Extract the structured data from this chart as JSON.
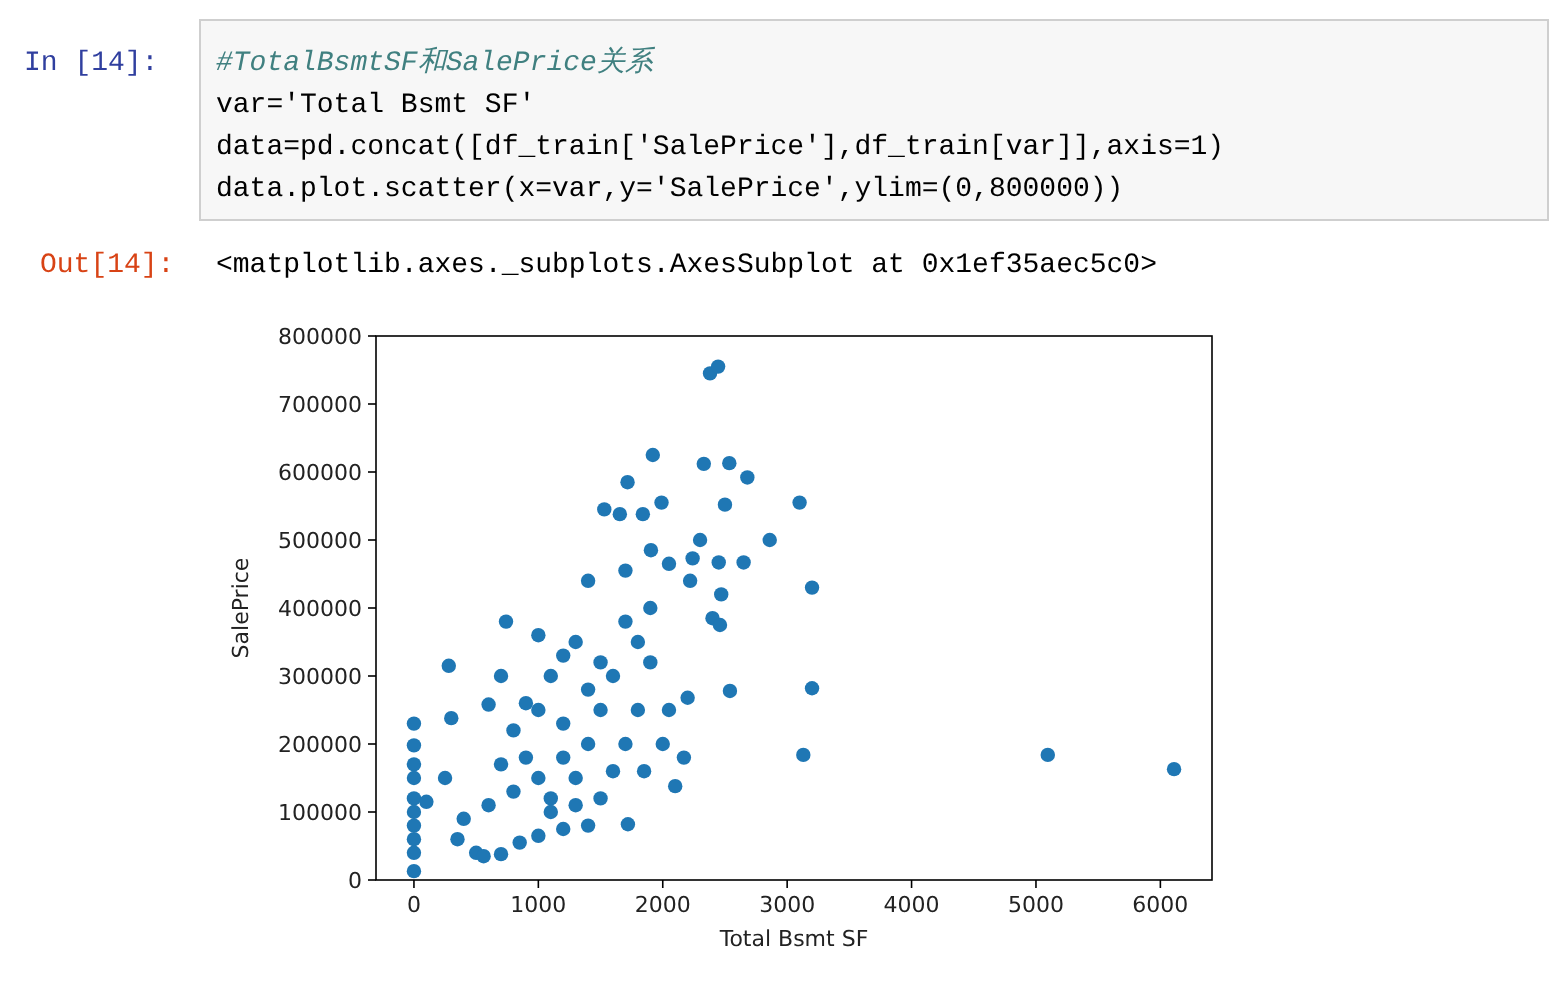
{
  "chart_data": {
    "type": "scatter",
    "xlabel": "Total Bsmt SF",
    "ylabel": "SalePrice",
    "annotations": [
      "In [14]:",
      "#TotalBsmtSF和SalePrice关系",
      "var='Total Bsmt SF'",
      "data=pd.concat([df_train['SalePrice'],df_train[var]],axis=1)",
      "data.plot.scatter(x=var,y='SalePrice',ylim=(0,800000))",
      "Out[14]:",
      "<matplotlib.axes._subplots.AxesSubplot at 0x1ef35aec5c0>"
    ],
    "xlim": [
      -305,
      6415
    ],
    "ylim": [
      0,
      800000
    ],
    "xticks": [
      0,
      1000,
      2000,
      3000,
      4000,
      5000,
      6000
    ],
    "yticks": [
      0,
      100000,
      200000,
      300000,
      400000,
      500000,
      600000,
      700000,
      800000
    ],
    "grid": false,
    "marker": "circle",
    "series": [
      {
        "color": "#1f77b4",
        "x": [
          2380,
          2445,
          1920,
          1717,
          2330,
          2535,
          2680,
          1530,
          1655,
          1840,
          1990,
          2500,
          3100,
          2300,
          2860,
          1905,
          2050,
          2240,
          2450,
          2650,
          3200,
          1400,
          1700,
          2220,
          2470,
          2400,
          2460,
          740,
          1000,
          280,
          700,
          300,
          600,
          0,
          0,
          0,
          0,
          0,
          0,
          0,
          0,
          0,
          0,
          100,
          2540,
          3200,
          3130,
          5095,
          6110,
          2200,
          2050,
          2000,
          2170,
          2100,
          1720,
          500,
          560,
          700,
          850,
          1000,
          1200,
          1400,
          1100,
          1000,
          900,
          800,
          900,
          1100,
          1200,
          1300,
          1500,
          1600,
          1800,
          1900,
          1800,
          1700,
          1600,
          1400,
          1200,
          1300,
          1500,
          1200,
          800,
          600,
          400,
          250,
          350,
          700,
          1000,
          1400,
          1700,
          1900,
          1850,
          1500,
          1300,
          1100
        ],
        "values": [
          745000,
          755000,
          625000,
          585000,
          612000,
          613000,
          592000,
          545000,
          538000,
          538000,
          555000,
          552000,
          555000,
          500000,
          500000,
          485000,
          465000,
          473000,
          467000,
          467000,
          430000,
          440000,
          455000,
          440000,
          420000,
          385000,
          375000,
          380000,
          360000,
          315000,
          300000,
          238000,
          258000,
          230000,
          198000,
          170000,
          150000,
          120000,
          100000,
          80000,
          60000,
          40000,
          13000,
          115000,
          278000,
          282000,
          184000,
          184000,
          163000,
          268000,
          250000,
          200000,
          180000,
          138000,
          82000,
          40000,
          35000,
          38000,
          55000,
          65000,
          75000,
          80000,
          120000,
          150000,
          180000,
          220000,
          260000,
          300000,
          330000,
          350000,
          320000,
          300000,
          350000,
          320000,
          250000,
          200000,
          160000,
          200000,
          230000,
          150000,
          250000,
          180000,
          130000,
          110000,
          90000,
          150000,
          60000,
          170000,
          250000,
          280000,
          380000,
          400000,
          160000,
          120000,
          110000,
          100000
        ]
      }
    ]
  }
}
